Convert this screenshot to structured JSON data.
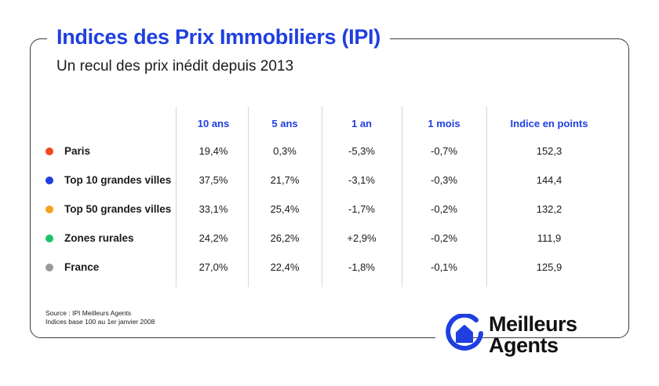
{
  "header": {
    "title": "Indices des Prix Immobiliers (IPI)",
    "subtitle": "Un recul des prix inédit depuis 2013"
  },
  "table": {
    "columns": [
      "10 ans",
      "5 ans",
      "1 an",
      "1 mois",
      "Indice en points"
    ],
    "rows": [
      {
        "label": "Paris",
        "color": "#f04a1e",
        "values": [
          "19,4%",
          "0,3%",
          "-5,3%",
          "-0,7%",
          "152,3"
        ]
      },
      {
        "label": "Top 10 grandes villes",
        "color": "#1f3fe0",
        "values": [
          "37,5%",
          "21,7%",
          "-3,1%",
          "-0,3%",
          "144,4"
        ]
      },
      {
        "label": "Top 50 grandes villes",
        "color": "#f2a31b",
        "values": [
          "33,1%",
          "25,4%",
          "-1,7%",
          "-0,2%",
          "132,2"
        ]
      },
      {
        "label": "Zones rurales",
        "color": "#1bc46b",
        "values": [
          "24,2%",
          "26,2%",
          "+2,9%",
          "-0,2%",
          "111,9"
        ]
      },
      {
        "label": "France",
        "color": "#9a9a9a",
        "values": [
          "27,0%",
          "22,4%",
          "-1,8%",
          "-0,1%",
          "125,9"
        ]
      }
    ]
  },
  "footer": {
    "source_line1": "Source : IPI Meilleurs Agents",
    "source_line2": "Indices base 100 au 1er janvier 2008"
  },
  "logo": {
    "icon": "house-logo-icon",
    "line1": "Meilleurs",
    "line2": "Agents",
    "color": "#1f3fe0"
  }
}
